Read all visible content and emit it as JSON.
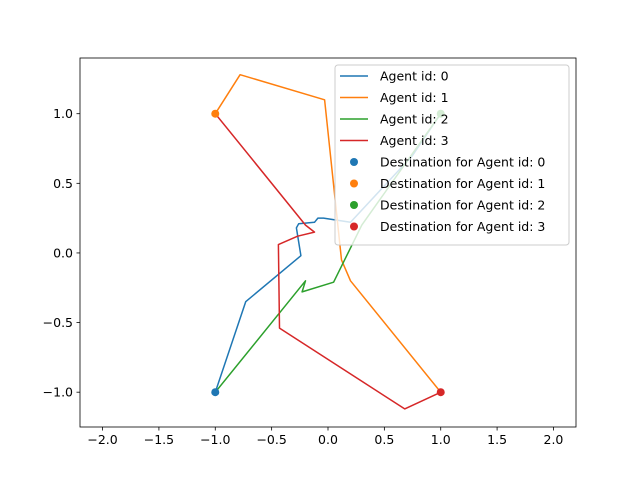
{
  "chart_data": {
    "type": "line",
    "title": "",
    "xlabel": "",
    "ylabel": "",
    "xlim": [
      -2.2,
      2.2
    ],
    "ylim": [
      -1.25,
      1.4
    ],
    "xticks": [
      -2.0,
      -1.5,
      -1.0,
      -0.5,
      0.0,
      0.5,
      1.0,
      1.5,
      2.0
    ],
    "xtick_labels": [
      "−2.0",
      "−1.5",
      "−1.0",
      "−0.5",
      "0.0",
      "0.5",
      "1.0",
      "1.5",
      "2.0"
    ],
    "yticks": [
      -1.0,
      -0.5,
      0.0,
      0.5,
      1.0
    ],
    "ytick_labels": [
      "−1.0",
      "−0.5",
      "0.0",
      "0.5",
      "1.0"
    ],
    "grid": false,
    "legend_position": "top-right",
    "series": [
      {
        "name": "Agent id: 0",
        "color": "#1f77b4",
        "x": [
          -1.0,
          -0.73,
          -0.24,
          -0.28,
          -0.26,
          -0.12,
          -0.09,
          -0.04,
          0.2,
          0.75,
          1.0
        ],
        "y": [
          -1.0,
          -0.35,
          -0.02,
          0.18,
          0.21,
          0.22,
          0.25,
          0.25,
          0.22,
          0.7,
          1.0
        ]
      },
      {
        "name": "Agent id: 1",
        "color": "#ff7f0e",
        "x": [
          -1.0,
          -0.78,
          -0.03,
          0.12,
          0.2,
          1.0
        ],
        "y": [
          1.0,
          1.28,
          1.1,
          -0.05,
          -0.2,
          -1.0
        ]
      },
      {
        "name": "Agent id: 2",
        "color": "#2ca02c",
        "x": [
          -1.0,
          -0.2,
          -0.23,
          0.05,
          0.3,
          1.0
        ],
        "y": [
          -1.0,
          -0.2,
          -0.28,
          -0.21,
          0.2,
          1.0
        ]
      },
      {
        "name": "Agent id: 3",
        "color": "#d62728",
        "x": [
          -1.0,
          -0.2,
          -0.12,
          -0.27,
          -0.44,
          -0.43,
          0.68,
          1.0
        ],
        "y": [
          1.0,
          0.2,
          0.15,
          0.12,
          0.06,
          -0.54,
          -1.12,
          -1.0
        ]
      }
    ],
    "destinations": [
      {
        "name": "Destination for Agent id: 0",
        "color": "#1f77b4",
        "x": -1.0,
        "y": -1.0
      },
      {
        "name": "Destination for Agent id: 1",
        "color": "#ff7f0e",
        "x": -1.0,
        "y": 1.0
      },
      {
        "name": "Destination for Agent id: 2",
        "color": "#2ca02c",
        "x": 1.0,
        "y": 1.0
      },
      {
        "name": "Destination for Agent id: 3",
        "color": "#d62728",
        "x": 1.0,
        "y": -1.0
      }
    ]
  }
}
